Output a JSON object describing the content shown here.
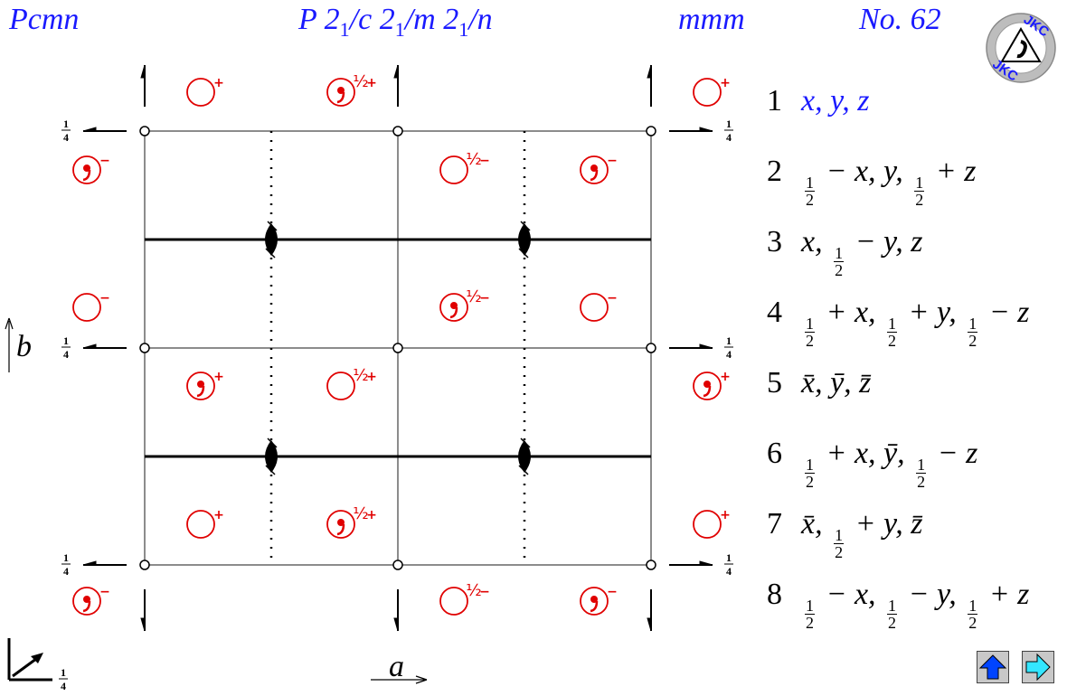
{
  "header": {
    "hm_symbol": "Pcmn",
    "full_symbol_parts": [
      "P 2",
      "1",
      "/c 2",
      "1",
      "/m 2",
      "1",
      "/n"
    ],
    "point_group": "mmm",
    "number": "No. 62"
  },
  "logo": {
    "text": "JKC",
    "text_bottom": "JKC"
  },
  "diagram": {
    "quarter": "1/4",
    "frac_num": "1",
    "frac_den": "4",
    "axis_a": "a",
    "axis_b": "b",
    "half": "½",
    "plus": "+",
    "minus": "−",
    "colors": {
      "symbols": "#e00000",
      "lines": "#000000",
      "grid": "#666666"
    }
  },
  "operations": [
    {
      "num": "1",
      "expr": [
        "x, y, z"
      ]
    },
    {
      "num": "2",
      "expr": [
        "½",
        " − x, y, ",
        "½",
        " + z"
      ]
    },
    {
      "num": "3",
      "expr": [
        "x, ",
        "½",
        " − y, z"
      ]
    },
    {
      "num": "4",
      "expr": [
        "½",
        " + x, ",
        "½",
        " + y, ",
        "½",
        " − z"
      ]
    },
    {
      "num": "5",
      "expr": [
        "x̄, ȳ, z̄"
      ]
    },
    {
      "num": "6",
      "expr": [
        "½",
        " + x, ȳ, ",
        "½",
        " − z"
      ]
    },
    {
      "num": "7",
      "expr": [
        "x̄, ",
        "½",
        " + y, z̄"
      ]
    },
    {
      "num": "8",
      "expr": [
        "½",
        " − x, ",
        "½",
        " − y, ",
        "½",
        " + z"
      ]
    }
  ],
  "nav": {
    "up": "up-arrow-icon",
    "next": "right-arrow-icon"
  }
}
